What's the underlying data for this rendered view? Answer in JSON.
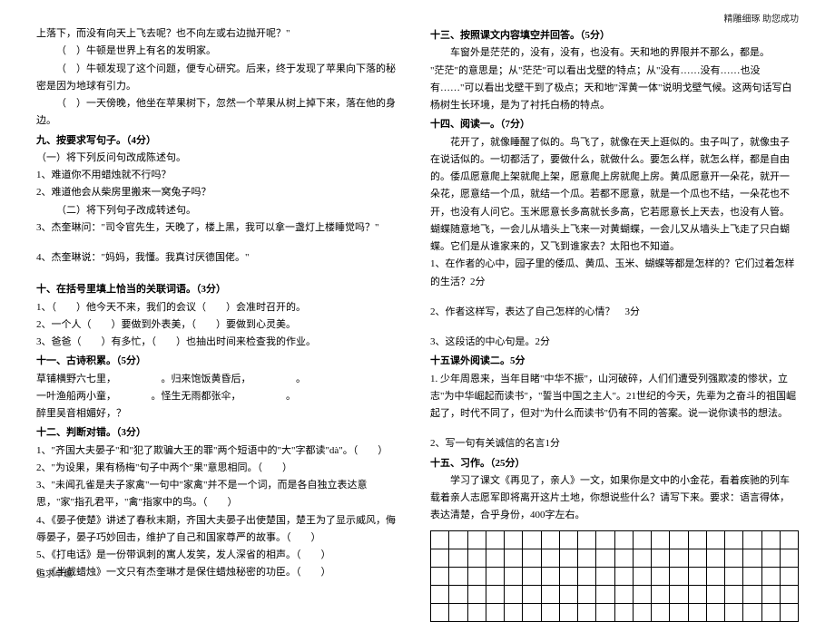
{
  "header_right": "精雕细琢 助您成功",
  "footer_left": "追求卓越",
  "left": {
    "p_top_1": "上落下，而没有向天上飞去呢？也不向左或右边抛开呢？\"",
    "p_top_2": "（　）牛顿是世界上有名的发明家。",
    "p_top_3": "（　）牛顿发现了这个问题，便专心研究。后来，终于发现了苹果向下落的秘密是因为地球有引力。",
    "p_top_4": "（　）一天傍晚，他坐在苹果树下，忽然一个苹果从树上掉下来，落在他的身边。",
    "sec9_title": "九、按要求写句子。（4分）",
    "sec9_sub1": "（一）将下列反问句改成陈述句。",
    "sec9_q1": "1、难道你不用蜡烛就不行吗？",
    "sec9_q2": "2、难道他会从柴房里搬来一窝兔子吗？",
    "sec9_sub2": "（二）将下列句子改成转述句。",
    "sec9_q3": "3、杰奎琳问：\"司令官先生，天晚了，楼上黑，我可以拿一盏灯上楼睡觉吗？\"",
    "sec9_q4": "4、杰奎琳说：\"妈妈，我懂。我真讨厌德国佬。\"",
    "sec10_title": "十、在括号里填上恰当的关联词语。（3分）",
    "sec10_1": "1、（　　）他今天不来，我们的会议（　　）会准时召开的。",
    "sec10_2": "2、一个人（　　）要做到外表美，（　　）要做到心灵美。",
    "sec10_3": "3、爸爸（　　）有多忙，（　　）也抽出时间来检查我的作业。",
    "sec11_title": "十一、古诗积累。（5分）",
    "sec11_1": "草铺横野六七里，　　　　　。归来饱饭黄昏后，　　　　　。",
    "sec11_2": "一叶渔船两小童，　　　　。怪生无雨都张伞，　　　　　。",
    "sec11_3": "醉里吴音相媚好，？",
    "sec12_title": "十二、判断对错。（3分）",
    "sec12_1": "1、\"齐国大夫晏子\"和\"犯了欺骗大王的罪\"两个短语中的\"大\"字都读\"dà\"。（　　）",
    "sec12_2": "2、\"为设果，果有杨梅\"句子中两个\"果\"意思相同。（　　）",
    "sec12_3": "3、\"未闻孔雀是夫子家禽\"一句中\"家禽\"并不是一个词，而是各自独立表达意思，\"家\"指孔君平，\"禽\"指家中的鸟。（　　）",
    "sec12_4": "4、《晏子使楚》讲述了春秋末期，齐国大夫晏子出使楚国，楚王为了显示威风，侮辱晏子，晏子巧妙回击，维护了自己和国家尊严的故事。（　　）",
    "sec12_5": "5、《打电话》是一份带讽刺的寓人发笑，发人深省的相声。（　　）",
    "sec12_6": "6、《半截蜡烛》一文只有杰奎琳才是保住蜡烛秘密的功臣。（　　）"
  },
  "right": {
    "sec13_title": "十三、按照课文内容填空并回答。（5分）",
    "sec13_p1": "车窗外是茫茫的，没有，没有，也没有。天和地的界限并不那么，都是。",
    "sec13_p2": "\"茫茫\"的意思是；从\"茫茫\"可以看出戈壁的特点；从\"没有……没有……也没有……\"可以看出戈壁干到了极点；天和地\"浑黄一体\"说明戈壁气候。这两句话写白杨树生长环境，是为了衬托白杨的特点。",
    "sec14_title": "十四、阅读一。（7分）",
    "sec14_p1": "花开了，就像睡醒了似的。鸟飞了，就像在天上逛似的。虫子叫了，就像虫子在说话似的。一切都活了，要做什么，就做什么。要怎么样，就怎么样，都是自由的。倭瓜愿意爬上架就爬上架，愿意爬上房就爬上房。黄瓜愿意开一朵花，就开一朵花，愿意结一个瓜，就结一个瓜。若都不愿意，就是一个瓜也不结，一朵花也不开，也没有人问它。玉米愿意长多高就长多高，它若愿意长上天去，也没有人管。蝴蝶随意地飞，一会儿从墙头上飞来一对黄蝴蝶，一会儿又从墙头上飞走了只白蝴蝶。它们是从谁家来的，又飞到谁家去？太阳也不知道。",
    "sec14_q1": "1、在作者的心中，园子里的倭瓜、黄瓜、玉米、蝴蝶等都是怎样的？它们过着怎样的生活？2分",
    "sec14_q2": "2、作者这样写，表达了自己怎样的心情？　3分",
    "sec14_q3": "3、这段话的中心句是。2分",
    "sec15a_title": "十五课外阅读二。5分",
    "sec15a_p1": "1. 少年周恩来，当年目睹\"中华不振\"，山河破碎，人们们遭受列强欺凌的惨状，立志\"为中华崛起而读书\"，\"誓当中国之主人\"。21世纪的今天，先辈为之奋斗的祖国崛起了，时代不同了，但对\"为什么而读书\"仍有不同的答案。说一说你读书的想法。",
    "sec15a_q2": "2、写一句有关诚信的名言1分",
    "sec15b_title": "十五、习作。（25分）",
    "sec15b_p1": "学习了课文《再见了，亲人》一文，如果你是文中的小金花，看着疾驰的列车载着亲人志愿军即将离开这片土地，你想说些什么？请写下来。要求：语言得体，表达清楚，合乎身份，400字左右。"
  },
  "grid": {
    "rows": 5,
    "cols": 20
  }
}
